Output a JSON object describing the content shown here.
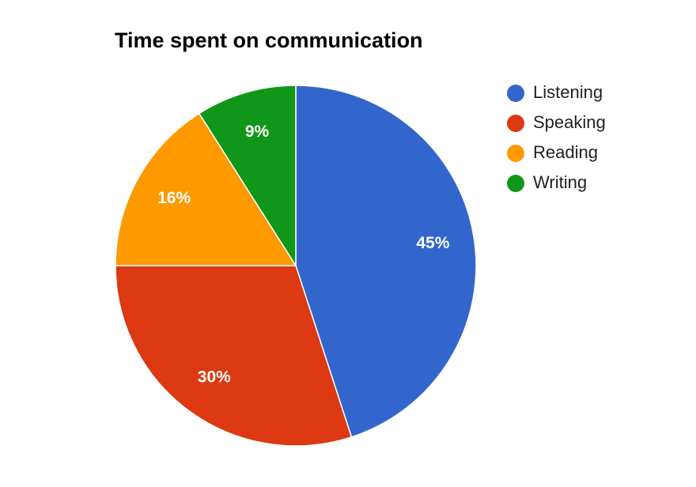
{
  "chart_data": {
    "type": "pie",
    "title": "Time spent on communication",
    "categories": [
      "Listening",
      "Speaking",
      "Reading",
      "Writing"
    ],
    "values": [
      45,
      30,
      16,
      9
    ],
    "value_labels": [
      "45%",
      "30%",
      "16%",
      "9%"
    ],
    "colors": [
      "#3366cc",
      "#dc3912",
      "#ff9900",
      "#109618"
    ]
  }
}
